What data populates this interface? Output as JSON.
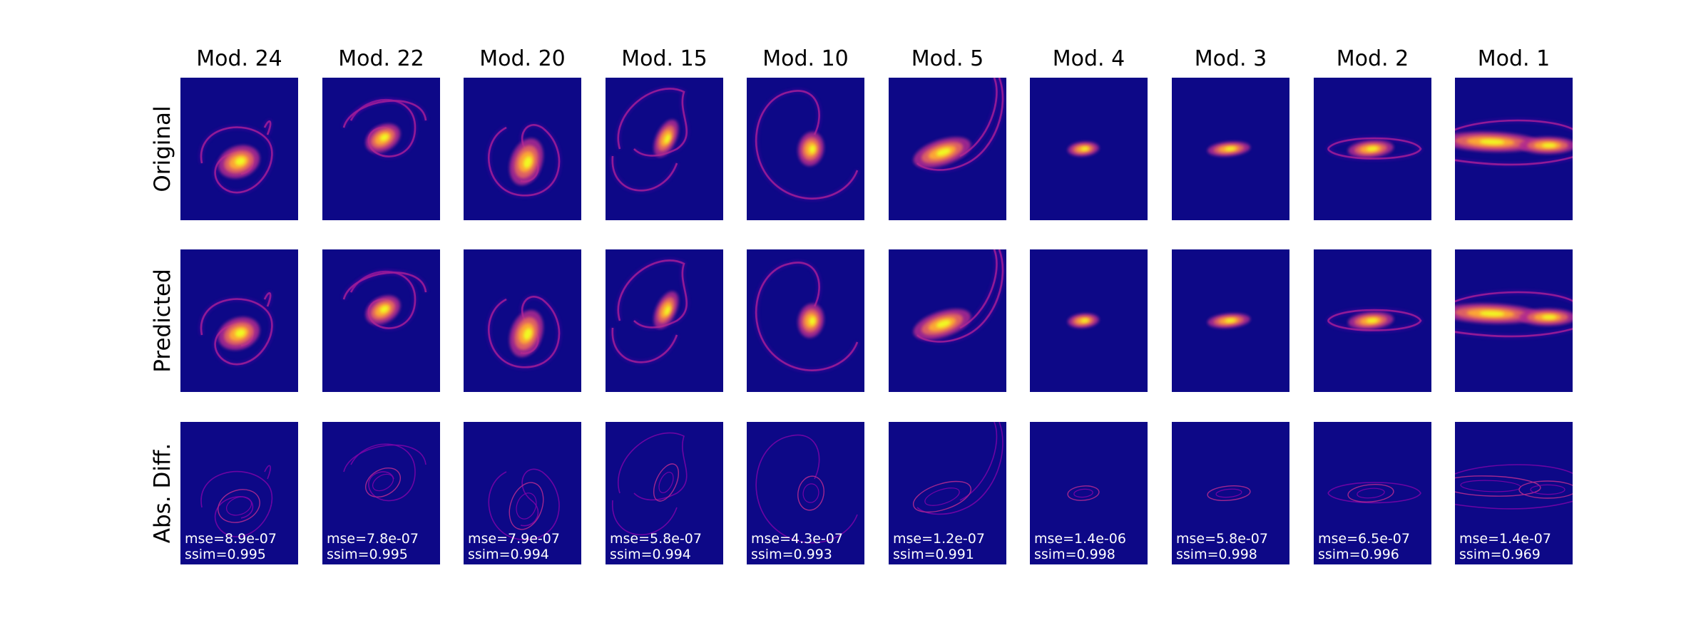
{
  "columns": [
    {
      "title": "Mod. 24",
      "mse": "mse=8.9e-07",
      "ssim": "ssim=0.995",
      "shape": "swirl-small"
    },
    {
      "title": "Mod. 22",
      "mse": "mse=7.8e-07",
      "ssim": "ssim=0.995",
      "shape": "swirl-ring"
    },
    {
      "title": "Mod. 20",
      "mse": "mse=7.9e-07",
      "ssim": "ssim=0.994",
      "shape": "swirl-drop"
    },
    {
      "title": "Mod. 15",
      "mse": "mse=5.8e-07",
      "ssim": "ssim=0.994",
      "shape": "hook"
    },
    {
      "title": "Mod. 10",
      "mse": "mse=4.3e-07",
      "ssim": "ssim=0.993",
      "shape": "loop-large"
    },
    {
      "title": "Mod. 5",
      "mse": "mse=1.2e-07",
      "ssim": "ssim=0.991",
      "shape": "tail"
    },
    {
      "title": "Mod. 4",
      "mse": "mse=1.4e-06",
      "ssim": "ssim=0.998",
      "shape": "blob-small"
    },
    {
      "title": "Mod. 3",
      "mse": "mse=5.8e-07",
      "ssim": "ssim=0.998",
      "shape": "blob-flat"
    },
    {
      "title": "Mod. 2",
      "mse": "mse=6.5e-07",
      "ssim": "ssim=0.996",
      "shape": "blob-ring"
    },
    {
      "title": "Mod. 1",
      "mse": "mse=1.4e-07",
      "ssim": "ssim=0.969",
      "shape": "band"
    }
  ],
  "rows": [
    {
      "label": "Original",
      "kind": "original"
    },
    {
      "label": "Predicted",
      "kind": "predicted"
    },
    {
      "label": "Abs. Diff.",
      "kind": "diff"
    }
  ],
  "colors": {
    "background": "#0d0887",
    "low": "#6a00a8",
    "mid": "#b12a90",
    "high": "#e16462",
    "hot": "#fca636",
    "peak": "#f0f921",
    "diff": "#7e03a8"
  }
}
